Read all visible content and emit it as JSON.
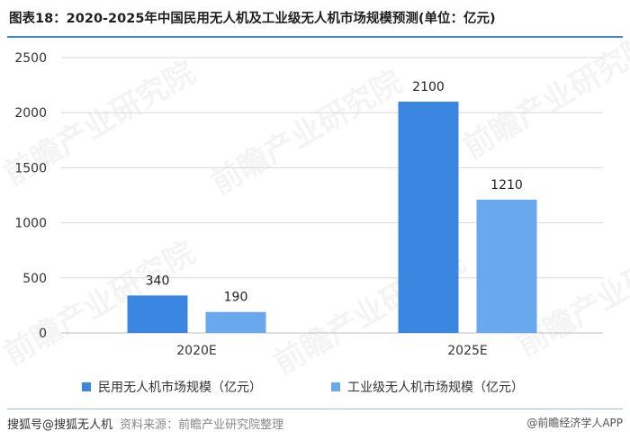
{
  "page": {
    "title": "图表18：2020-2025年中国民用无人机及工业级无人机市场规模预测(单位：亿元)",
    "footer_left": "搜狐号@搜狐无人机",
    "footer_source": "资料来源：前瞻产业研究院整理",
    "footer_right": "@前瞻经济学人APP",
    "watermark_text": "前瞻产业研究院"
  },
  "chart_data": {
    "type": "bar",
    "categories": [
      "2020E",
      "2025E"
    ],
    "series": [
      {
        "name": "民用无人机市场规模（亿元）",
        "values": [
          340,
          2100
        ],
        "color": "#3b86e0"
      },
      {
        "name": "工业级无人机市场规模（亿元）",
        "values": [
          190,
          1210
        ],
        "color": "#6aa8ee"
      }
    ],
    "ylim": [
      0,
      2500
    ],
    "yticks": [
      0,
      500,
      1000,
      1500,
      2000,
      2500
    ],
    "grid": true,
    "legend": "bottom"
  }
}
